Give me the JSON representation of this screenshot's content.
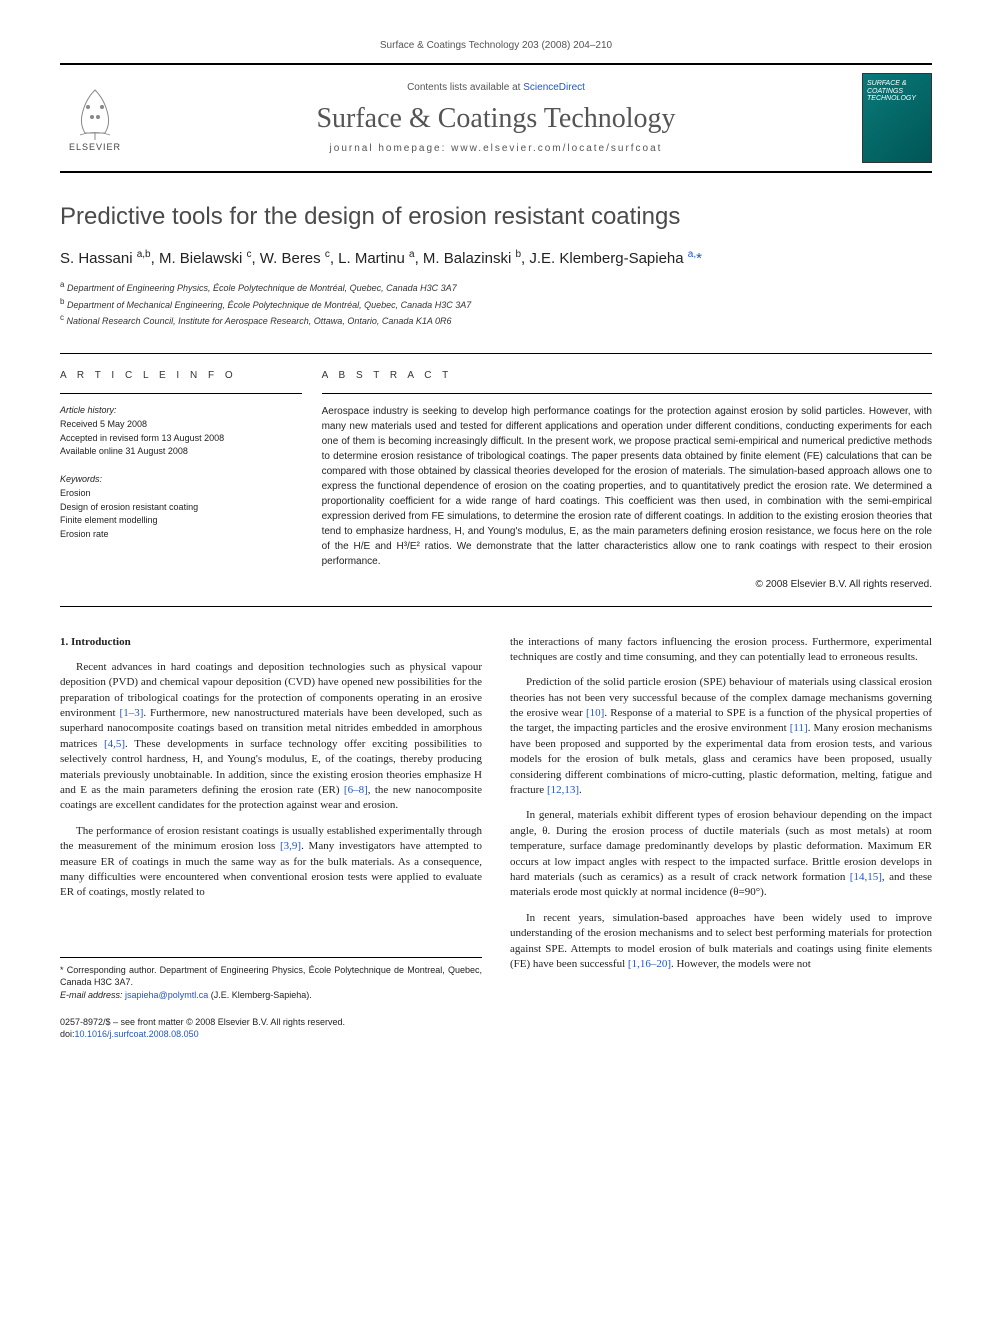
{
  "top_line": "Surface & Coatings Technology 203 (2008) 204–210",
  "header": {
    "contents_prefix": "Contents lists available at ",
    "contents_link": "ScienceDirect",
    "journal_name": "Surface & Coatings Technology",
    "homepage_prefix": "journal homepage: ",
    "homepage": "www.elsevier.com/locate/surfcoat",
    "publisher": "ELSEVIER",
    "cover_text": "SURFACE & COATINGS TECHNOLOGY"
  },
  "title": "Predictive tools for the design of erosion resistant coatings",
  "authors_html": "S. Hassani <sup>a,b</sup>, M. Bielawski <sup>c</sup>, W. Beres <sup>c</sup>, L. Martinu <sup>a</sup>, M. Balazinski <sup>b</sup>, J.E. Klemberg-Sapieha <sup><a href=\"#\">a,</a></sup><a href=\"#\">*</a>",
  "affiliations": {
    "a": "Department of Engineering Physics, École Polytechnique de Montréal, Quebec, Canada H3C 3A7",
    "b": "Department of Mechanical Engineering, École Polytechnique de Montréal, Quebec, Canada H3C 3A7",
    "c": "National Research Council, Institute for Aerospace Research, Ottawa, Ontario, Canada K1A 0R6"
  },
  "article_info": {
    "label": "A R T I C L E   I N F O",
    "history_label": "Article history:",
    "received": "Received 5 May 2008",
    "accepted": "Accepted in revised form 13 August 2008",
    "online": "Available online 31 August 2008",
    "keywords_label": "Keywords:",
    "keywords": [
      "Erosion",
      "Design of erosion resistant coating",
      "Finite element modelling",
      "Erosion rate"
    ]
  },
  "abstract": {
    "label": "A B S T R A C T",
    "text": "Aerospace industry is seeking to develop high performance coatings for the protection against erosion by solid particles. However, with many new materials used and tested for different applications and operation under different conditions, conducting experiments for each one of them is becoming increasingly difficult. In the present work, we propose practical semi-empirical and numerical predictive methods to determine erosion resistance of tribological coatings. The paper presents data obtained by finite element (FE) calculations that can be compared with those obtained by classical theories developed for the erosion of materials. The simulation-based approach allows one to express the functional dependence of erosion on the coating properties, and to quantitatively predict the erosion rate. We determined a proportionality coefficient for a wide range of hard coatings. This coefficient was then used, in combination with the semi-empirical expression derived from FE simulations, to determine the erosion rate of different coatings. In addition to the existing erosion theories that tend to emphasize hardness, H, and Young's modulus, E, as the main parameters defining erosion resistance, we focus here on the role of the H/E and H³/E² ratios. We demonstrate that the latter characteristics allow one to rank coatings with respect to their erosion performance.",
    "copyright": "© 2008 Elsevier B.V. All rights reserved."
  },
  "body": {
    "section_head": "1. Introduction",
    "left": [
      "Recent advances in hard coatings and deposition technologies such as physical vapour deposition (PVD) and chemical vapour deposition (CVD) have opened new possibilities for the preparation of tribological coatings for the protection of components operating in an erosive environment <span class=\"ref-link\">[1–3]</span>. Furthermore, new nanostructured materials have been developed, such as superhard nanocomposite coatings based on transition metal nitrides embedded in amorphous matrices <span class=\"ref-link\">[4,5]</span>. These developments in surface technology offer exciting possibilities to selectively control hardness, H, and Young's modulus, E, of the coatings, thereby producing materials previously unobtainable. In addition, since the existing erosion theories emphasize H and E as the main parameters defining the erosion rate (ER) <span class=\"ref-link\">[6–8]</span>, the new nanocomposite coatings are excellent candidates for the protection against wear and erosion.",
      "The performance of erosion resistant coatings is usually established experimentally through the measurement of the minimum erosion loss <span class=\"ref-link\">[3,9]</span>. Many investigators have attempted to measure ER of coatings in much the same way as for the bulk materials. As a consequence, many difficulties were encountered when conventional erosion tests were applied to evaluate ER of coatings, mostly related to"
    ],
    "right": [
      "the interactions of many factors influencing the erosion process. Furthermore, experimental techniques are costly and time consuming, and they can potentially lead to erroneous results.",
      "Prediction of the solid particle erosion (SPE) behaviour of materials using classical erosion theories has not been very successful because of the complex damage mechanisms governing the erosive wear <span class=\"ref-link\">[10]</span>. Response of a material to SPE is a function of the physical properties of the target, the impacting particles and the erosive environment <span class=\"ref-link\">[11]</span>. Many erosion mechanisms have been proposed and supported by the experimental data from erosion tests, and various models for the erosion of bulk metals, glass and ceramics have been proposed, usually considering different combinations of micro-cutting, plastic deformation, melting, fatigue and fracture <span class=\"ref-link\">[12,13]</span>.",
      "In general, materials exhibit different types of erosion behaviour depending on the impact angle, θ. During the erosion process of ductile materials (such as most metals) at room temperature, surface damage predominantly develops by plastic deformation. Maximum ER occurs at low impact angles with respect to the impacted surface. Brittle erosion develops in hard materials (such as ceramics) as a result of crack network formation <span class=\"ref-link\">[14,15]</span>, and these materials erode most quickly at normal incidence (θ=90°).",
      "In recent years, simulation-based approaches have been widely used to improve understanding of the erosion mechanisms and to select best performing materials for protection against SPE. Attempts to model erosion of bulk materials and coatings using finite elements (FE) have been successful <span class=\"ref-link\">[1,16–20]</span>. However, the models were not"
    ]
  },
  "footnotes": {
    "corr": "* Corresponding author. Department of Engineering Physics, École Polytechnique de Montreal, Quebec, Canada H3C 3A7.",
    "email_label": "E-mail address: ",
    "email": "jsapieha@polymtl.ca",
    "email_person": " (J.E. Klemberg-Sapieha)."
  },
  "bottom": {
    "line1": "0257-8972/$ – see front matter © 2008 Elsevier B.V. All rights reserved.",
    "doi_prefix": "doi:",
    "doi": "10.1016/j.surfcoat.2008.08.050"
  }
}
